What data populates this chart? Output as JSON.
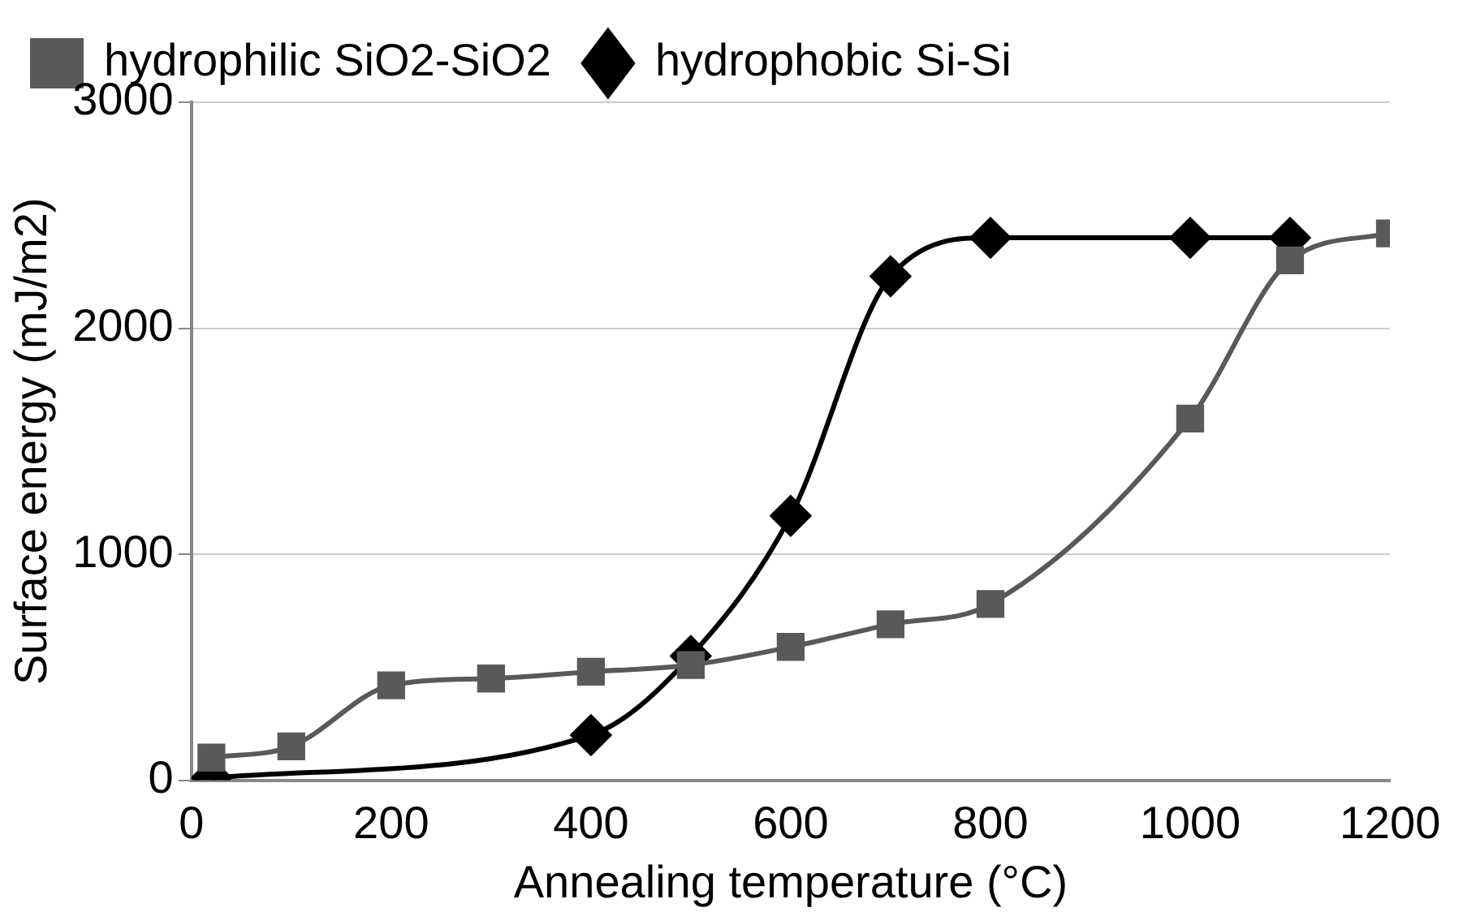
{
  "chart_data": {
    "type": "line",
    "xlabel": "Annealing temperature (°C)",
    "ylabel": "Surface energy (mJ/m2)",
    "xlim": [
      0,
      1200
    ],
    "xticks": [
      0,
      200,
      400,
      600,
      800,
      1000,
      1200
    ],
    "ylim": [
      0,
      3000
    ],
    "yticks": [
      0,
      1000,
      2000,
      3000
    ],
    "grid": "y",
    "legend": "top left",
    "series": [
      {
        "name": "hydrophobic Si-Si",
        "color": "#000000",
        "marker": "diamond",
        "x": [
          20,
          400,
          500,
          600,
          700,
          800,
          1000,
          1100
        ],
        "values": [
          10,
          200,
          550,
          1170,
          2230,
          2400,
          2400,
          2400
        ]
      },
      {
        "name": "hydrophilic SiO2-SiO2",
        "color": "#595959",
        "marker": "square",
        "x": [
          20,
          100,
          200,
          300,
          400,
          500,
          600,
          700,
          800,
          1000,
          1100,
          1200
        ],
        "values": [
          100,
          150,
          420,
          450,
          480,
          510,
          590,
          690,
          780,
          1600,
          2300,
          2420
        ]
      }
    ]
  }
}
